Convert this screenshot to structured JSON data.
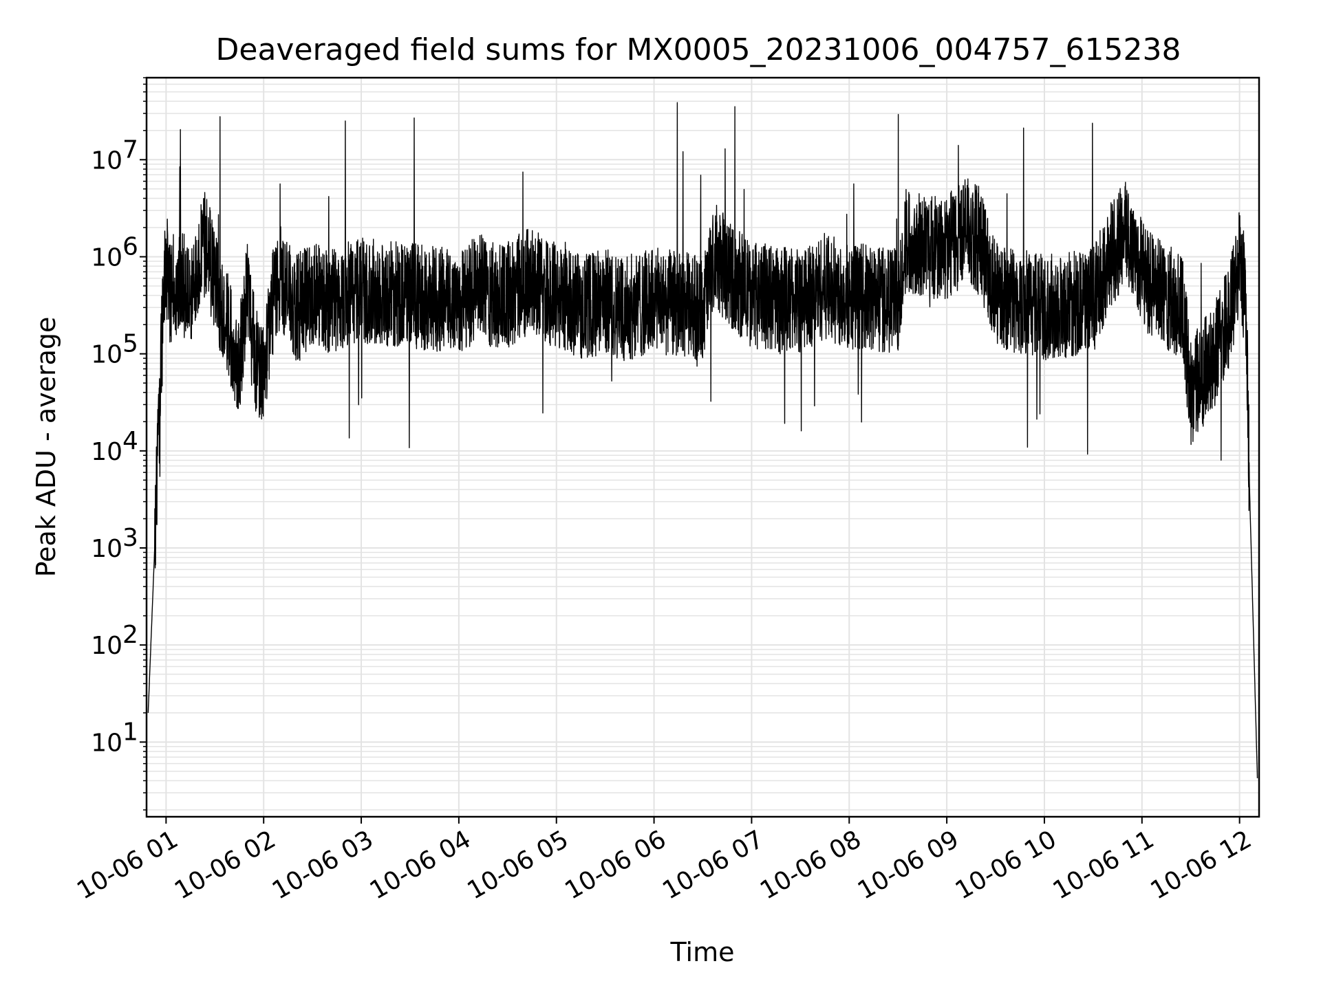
{
  "chart_data": {
    "type": "line",
    "title": "Deaveraged field sums for MX0005_20231006_004757_615238",
    "xlabel": "Time",
    "ylabel": "Peak ADU - average",
    "yscale": "log",
    "ylim": [
      1.7,
      70000000
    ],
    "xlim": [
      "2023-10-06 00:48",
      "2023-10-06 12:12"
    ],
    "grid": true,
    "line_color": "#000000",
    "x_tick_labels": [
      "10-06 01",
      "10-06 02",
      "10-06 03",
      "10-06 04",
      "10-06 05",
      "10-06 06",
      "10-06 07",
      "10-06 08",
      "10-06 09",
      "10-06 10",
      "10-06 11",
      "10-06 12"
    ],
    "y_ticks": [
      {
        "value": 10,
        "base": "10",
        "exp": "1"
      },
      {
        "value": 100,
        "base": "10",
        "exp": "2"
      },
      {
        "value": 1000,
        "base": "10",
        "exp": "3"
      },
      {
        "value": 10000,
        "base": "10",
        "exp": "4"
      },
      {
        "value": 100000,
        "base": "10",
        "exp": "5"
      },
      {
        "value": 1000000,
        "base": "10",
        "exp": "6"
      },
      {
        "value": 10000000,
        "base": "10",
        "exp": "7"
      }
    ],
    "series": [
      {
        "x": [
          "2023-10-06 00:49",
          "2023-10-06 00:53",
          "2023-10-06 00:57",
          "2023-10-06 01:00",
          "2023-10-06 01:02",
          "2023-10-06 01:05",
          "2023-10-06 01:10",
          "2023-10-06 01:15",
          "2023-10-06 01:20",
          "2023-10-06 01:25",
          "2023-10-06 01:30",
          "2023-10-06 01:38",
          "2023-10-06 01:45",
          "2023-10-06 01:50",
          "2023-10-06 01:55",
          "2023-10-06 02:00",
          "2023-10-06 02:05",
          "2023-10-06 02:10",
          "2023-10-06 02:15",
          "2023-10-06 02:20",
          "2023-10-06 02:30",
          "2023-10-06 02:40",
          "2023-10-06 02:50",
          "2023-10-06 03:00",
          "2023-10-06 03:30",
          "2023-10-06 04:00",
          "2023-10-06 04:15",
          "2023-10-06 04:20",
          "2023-10-06 04:30",
          "2023-10-06 04:45",
          "2023-10-06 04:52",
          "2023-10-06 05:00",
          "2023-10-06 05:18",
          "2023-10-06 05:30",
          "2023-10-06 05:40",
          "2023-10-06 05:45",
          "2023-10-06 06:00",
          "2023-10-06 06:30",
          "2023-10-06 06:38",
          "2023-10-06 06:45",
          "2023-10-06 07:00",
          "2023-10-06 07:30",
          "2023-10-06 07:45",
          "2023-10-06 08:00",
          "2023-10-06 08:30",
          "2023-10-06 08:35",
          "2023-10-06 09:00",
          "2023-10-06 09:10",
          "2023-10-06 09:20",
          "2023-10-06 09:30",
          "2023-10-06 10:00",
          "2023-10-06 10:30",
          "2023-10-06 10:40",
          "2023-10-06 10:50",
          "2023-10-06 11:05",
          "2023-10-06 11:25",
          "2023-10-06 11:30",
          "2023-10-06 11:45",
          "2023-10-06 11:55",
          "2023-10-06 12:00",
          "2023-10-06 12:04",
          "2023-10-06 12:06",
          "2023-10-06 12:11"
        ],
        "y": [
          20,
          1000,
          100000,
          1000000,
          400000,
          500000,
          600000,
          300000,
          1000000,
          1500000,
          500000,
          200000,
          80000,
          500000,
          90000,
          60000,
          300000,
          700000,
          400000,
          300000,
          400000,
          350000,
          400000,
          450000,
          400000,
          350000,
          500000,
          400000,
          400000,
          600000,
          450000,
          400000,
          300000,
          350000,
          300000,
          300000,
          350000,
          300000,
          1000000,
          700000,
          400000,
          350000,
          500000,
          400000,
          350000,
          1500000,
          1200000,
          2000000,
          1500000,
          400000,
          300000,
          350000,
          1000000,
          1800000,
          500000,
          300000,
          40000,
          100000,
          300000,
          1000000,
          300000,
          5000,
          4
        ]
      }
    ]
  }
}
